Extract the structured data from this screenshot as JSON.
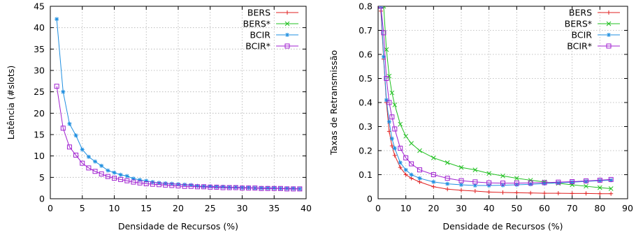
{
  "chart_data": [
    {
      "type": "line",
      "title": "",
      "xlabel": "Densidade de Recursos (%)",
      "ylabel": "Latência (#slots)",
      "xlim": [
        0,
        40
      ],
      "ylim": [
        0,
        45
      ],
      "xticks": [
        0,
        5,
        10,
        15,
        20,
        25,
        30,
        35,
        40
      ],
      "yticks": [
        0,
        5,
        10,
        15,
        20,
        25,
        30,
        35,
        40,
        45
      ],
      "grid": true,
      "legend_position": "top-right",
      "legend": [
        "BERS",
        "BERS*",
        "BCIR",
        "BCIR*"
      ],
      "series": [
        {
          "name": "BCIR",
          "color": "#1f8fe0",
          "marker": "asterisk",
          "x": [
            1,
            2,
            3,
            4,
            5,
            6,
            7,
            8,
            9,
            10,
            11,
            12,
            13,
            14,
            15,
            16,
            17,
            18,
            19,
            20,
            21,
            22,
            23,
            24,
            25,
            26,
            27,
            28,
            29,
            30,
            31,
            32,
            33,
            34,
            35,
            36,
            37,
            38,
            39
          ],
          "y": [
            42,
            25,
            17.5,
            14.8,
            11.5,
            9.8,
            8.7,
            7.7,
            6.6,
            6.1,
            5.6,
            5.3,
            4.7,
            4.4,
            4.2,
            3.9,
            3.7,
            3.6,
            3.5,
            3.4,
            3.3,
            3.2,
            3.0,
            2.9,
            2.9,
            2.8,
            2.8,
            2.7,
            2.7,
            2.6,
            2.6,
            2.5,
            2.5,
            2.5,
            2.5,
            2.4,
            2.4,
            2.4,
            2.3
          ]
        },
        {
          "name": "BCIR*",
          "color": "#a020d0",
          "marker": "square",
          "x": [
            1,
            2,
            3,
            4,
            5,
            6,
            7,
            8,
            9,
            10,
            11,
            12,
            13,
            14,
            15,
            16,
            17,
            18,
            19,
            20,
            21,
            22,
            23,
            24,
            25,
            26,
            27,
            28,
            29,
            30,
            31,
            32,
            33,
            34,
            35,
            36,
            37,
            38,
            39
          ],
          "y": [
            26.3,
            16.5,
            12.1,
            10.2,
            8.3,
            7.2,
            6.4,
            5.8,
            5.2,
            4.8,
            4.5,
            4.2,
            3.9,
            3.7,
            3.5,
            3.4,
            3.3,
            3.2,
            3.1,
            3.0,
            2.9,
            2.9,
            2.8,
            2.8,
            2.7,
            2.7,
            2.6,
            2.6,
            2.6,
            2.5,
            2.5,
            2.5,
            2.4,
            2.4,
            2.4,
            2.4,
            2.3,
            2.3,
            2.3
          ]
        }
      ]
    },
    {
      "type": "line",
      "title": "",
      "xlabel": "Densidade de Recursos (%)",
      "ylabel": "Taxas de Retransmissão",
      "xlim": [
        0,
        90
      ],
      "ylim": [
        0,
        0.8
      ],
      "xticks": [
        0,
        10,
        20,
        30,
        40,
        50,
        60,
        70,
        80,
        90
      ],
      "yticks": [
        0,
        0.1,
        0.2,
        0.3,
        0.4,
        0.5,
        0.6,
        0.7,
        0.8
      ],
      "grid": true,
      "legend_position": "top-right",
      "legend": [
        "BERS",
        "BERS*",
        "BCIR",
        "BCIR*"
      ],
      "series": [
        {
          "name": "BERS",
          "color": "#e02020",
          "marker": "plus",
          "x": [
            1,
            2,
            3,
            4,
            5,
            6,
            8,
            10,
            12,
            15,
            20,
            25,
            30,
            35,
            40,
            45,
            50,
            55,
            60,
            65,
            70,
            75,
            80,
            84
          ],
          "y": [
            0.78,
            0.58,
            0.4,
            0.28,
            0.22,
            0.18,
            0.13,
            0.1,
            0.085,
            0.07,
            0.05,
            0.04,
            0.035,
            0.032,
            0.028,
            0.026,
            0.025,
            0.024,
            0.023,
            0.023,
            0.022,
            0.022,
            0.021,
            0.021
          ]
        },
        {
          "name": "BERS*",
          "color": "#20c020",
          "marker": "x",
          "x": [
            1,
            2,
            3,
            4,
            5,
            6,
            8,
            10,
            12,
            15,
            20,
            25,
            30,
            35,
            40,
            45,
            50,
            55,
            60,
            65,
            70,
            75,
            80,
            84
          ],
          "y": [
            0.8,
            0.8,
            0.62,
            0.51,
            0.44,
            0.39,
            0.31,
            0.26,
            0.23,
            0.2,
            0.17,
            0.15,
            0.13,
            0.12,
            0.105,
            0.095,
            0.085,
            0.077,
            0.07,
            0.064,
            0.058,
            0.052,
            0.046,
            0.042
          ]
        },
        {
          "name": "BCIR",
          "color": "#1f8fe0",
          "marker": "asterisk",
          "x": [
            1,
            2,
            3,
            4,
            5,
            6,
            8,
            10,
            12,
            15,
            20,
            25,
            30,
            35,
            40,
            45,
            50,
            55,
            60,
            65,
            70,
            75,
            80,
            84
          ],
          "y": [
            0.8,
            0.59,
            0.41,
            0.32,
            0.25,
            0.21,
            0.15,
            0.12,
            0.1,
            0.085,
            0.07,
            0.062,
            0.058,
            0.055,
            0.055,
            0.056,
            0.058,
            0.06,
            0.063,
            0.066,
            0.069,
            0.072,
            0.075,
            0.077
          ]
        },
        {
          "name": "BCIR*",
          "color": "#a020d0",
          "marker": "square",
          "x": [
            1,
            2,
            3,
            4,
            5,
            6,
            8,
            10,
            12,
            15,
            20,
            25,
            30,
            35,
            40,
            45,
            50,
            55,
            60,
            65,
            70,
            75,
            80,
            84
          ],
          "y": [
            0.8,
            0.69,
            0.5,
            0.4,
            0.34,
            0.29,
            0.21,
            0.17,
            0.145,
            0.12,
            0.1,
            0.085,
            0.075,
            0.07,
            0.066,
            0.065,
            0.065,
            0.066,
            0.067,
            0.069,
            0.071,
            0.074,
            0.077,
            0.08
          ]
        }
      ]
    }
  ]
}
